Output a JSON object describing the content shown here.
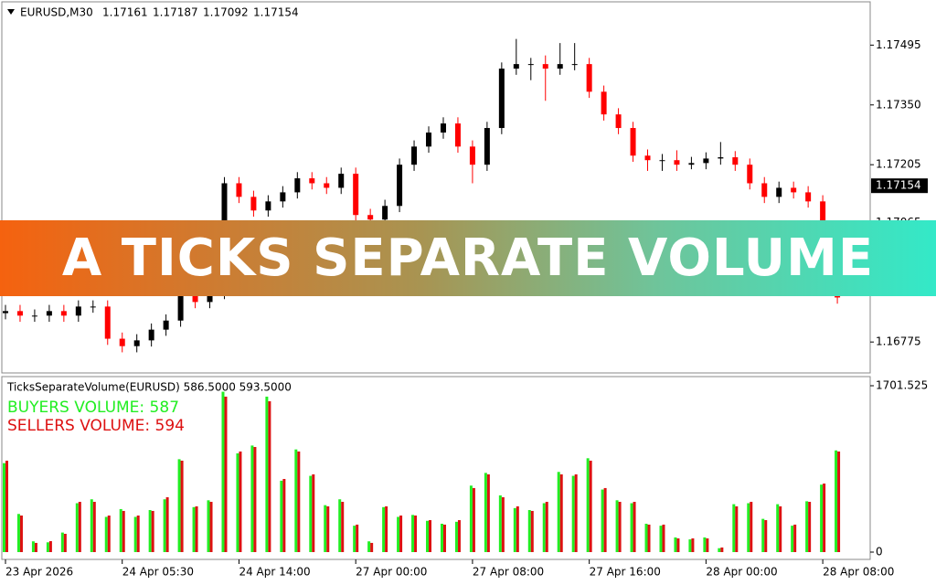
{
  "header": {
    "symbol": "EURUSD,M30",
    "ohlc": [
      1.17161,
      1.17187,
      1.17092,
      1.17154
    ]
  },
  "banner": "A TICKS SEPARATE VOLUME",
  "chart_data": [
    {
      "type": "candlestick",
      "up_color": "#000000",
      "down_color": "#ff0000",
      "ylim": [
        1.167,
        1.176
      ],
      "yticks": [
        1.17495,
        {
          "value": 1.1735,
          "label": "1.17350"
        },
        1.17205,
        1.17065,
        1.16775
      ],
      "current_price": 1.17154,
      "open": [
        1.16845,
        1.1685,
        1.16839,
        1.16839,
        1.1685,
        1.16839,
        1.16861,
        1.16861,
        1.16783,
        1.16765,
        1.16779,
        1.16805,
        1.16827,
        1.16916,
        1.16872,
        1.16894,
        1.1716,
        1.17127,
        1.17094,
        1.17116,
        1.17138,
        1.17172,
        1.1716,
        1.17149,
        1.17183,
        1.17083,
        1.17072,
        1.17105,
        1.17205,
        1.17249,
        1.17283,
        1.17305,
        1.17249,
        1.17205,
        1.17294,
        1.17438,
        1.17449,
        1.17449,
        1.17438,
        1.17449,
        1.17449,
        1.17382,
        1.17327,
        1.17294,
        1.17227,
        1.17216,
        1.17216,
        1.17205,
        1.17209,
        1.1722,
        1.17223,
        1.17205,
        1.1716,
        1.17127,
        1.17149,
        1.17138,
        1.17116,
        1.17027
      ],
      "high": [
        1.16865,
        1.16865,
        1.16854,
        1.16865,
        1.16865,
        1.16876,
        1.16876,
        1.16876,
        1.16798,
        1.16794,
        1.1682,
        1.16842,
        1.16931,
        1.16931,
        1.16909,
        1.17175,
        1.17175,
        1.17142,
        1.17131,
        1.17153,
        1.17187,
        1.17187,
        1.17175,
        1.17198,
        1.17198,
        1.17098,
        1.1712,
        1.1722,
        1.17264,
        1.17298,
        1.1732,
        1.1732,
        1.17264,
        1.17309,
        1.17453,
        1.1751,
        1.17464,
        1.1747,
        1.175,
        1.175,
        1.17464,
        1.17397,
        1.17342,
        1.17309,
        1.17242,
        1.17231,
        1.1724,
        1.17224,
        1.17235,
        1.1726,
        1.17238,
        1.1722,
        1.17175,
        1.17164,
        1.17164,
        1.17153,
        1.17131,
        1.17042
      ],
      "low": [
        1.1683,
        1.16824,
        1.16824,
        1.16824,
        1.16824,
        1.16824,
        1.16846,
        1.16768,
        1.1675,
        1.1675,
        1.16764,
        1.1679,
        1.16812,
        1.16857,
        1.16857,
        1.16879,
        1.17112,
        1.17079,
        1.17079,
        1.17101,
        1.17123,
        1.17145,
        1.17134,
        1.17134,
        1.17068,
        1.17057,
        1.17057,
        1.1709,
        1.1719,
        1.17234,
        1.17268,
        1.17234,
        1.1716,
        1.1719,
        1.17279,
        1.17423,
        1.1741,
        1.1736,
        1.17423,
        1.17434,
        1.17367,
        1.17312,
        1.17279,
        1.17212,
        1.1719,
        1.1719,
        1.1719,
        1.17194,
        1.17194,
        1.17205,
        1.1719,
        1.17145,
        1.17112,
        1.17112,
        1.17123,
        1.17101,
        1.17012,
        1.16868
      ],
      "close": [
        1.1685,
        1.16839,
        1.16839,
        1.1685,
        1.16839,
        1.16861,
        1.16861,
        1.16783,
        1.16765,
        1.16779,
        1.16805,
        1.16827,
        1.16916,
        1.16872,
        1.16894,
        1.1716,
        1.17127,
        1.17094,
        1.17116,
        1.17138,
        1.17172,
        1.1716,
        1.17149,
        1.17183,
        1.17083,
        1.17072,
        1.17105,
        1.17205,
        1.17249,
        1.17283,
        1.17305,
        1.17249,
        1.17205,
        1.17294,
        1.17438,
        1.17449,
        1.17449,
        1.17438,
        1.17449,
        1.17449,
        1.17382,
        1.17327,
        1.17294,
        1.17227,
        1.17216,
        1.17216,
        1.17205,
        1.17209,
        1.1722,
        1.17223,
        1.17205,
        1.1716,
        1.17127,
        1.17149,
        1.17138,
        1.17116,
        1.17027,
        1.16883
      ]
    },
    {
      "type": "bar",
      "title": "TicksSeparateVolume(EURUSD) 586.5000 593.5000",
      "annotations": [
        "BUYERS VOLUME: 587",
        "SELLERS VOLUME: 594"
      ],
      "ylim": [
        0,
        1701.525
      ],
      "yticks": [
        0,
        1701.525
      ],
      "xlim": [
        -0.25,
        59.25
      ],
      "xticks": [
        {
          "value": 0,
          "label": "23 Apr 2026"
        },
        {
          "value": 8,
          "label": "24 Apr 05:30"
        },
        {
          "value": 16,
          "label": "24 Apr 14:00"
        },
        {
          "value": 24,
          "label": "27 Apr 00:00"
        },
        {
          "value": 32,
          "label": "27 Apr 08:00"
        },
        {
          "value": 40,
          "label": "27 Apr 16:00"
        },
        {
          "value": 48,
          "label": "28 Apr 00:00"
        },
        {
          "value": 56,
          "label": "28 Apr 08:00"
        }
      ],
      "series": [
        {
          "color": "#22ee22",
          "values": [
            910,
            390,
            110,
            100,
            200,
            500,
            540,
            360,
            440,
            360,
            430,
            540,
            950,
            460,
            530,
            1640,
            1010,
            1090,
            1590,
            730,
            1050,
            780,
            480,
            540,
            270,
            110,
            460,
            360,
            380,
            320,
            290,
            310,
            680,
            810,
            580,
            450,
            430,
            500,
            820,
            780,
            960,
            640,
            530,
            500,
            290,
            270,
            150,
            130,
            150,
            40,
            490,
            500,
            340,
            490,
            270,
            520,
            690,
            1040
          ]
        },
        {
          "color": "#dd1111",
          "values": [
            935,
            374,
            94,
            112,
            187,
            514,
            514,
            374,
            421,
            374,
            421,
            561,
            935,
            468,
            514,
            1590,
            1029,
            1075,
            1543,
            748,
            1029,
            795,
            468,
            514,
            281,
            94,
            468,
            374,
            374,
            327,
            281,
            327,
            655,
            795,
            561,
            468,
            421,
            514,
            795,
            795,
            935,
            655,
            514,
            514,
            281,
            281,
            140,
            140,
            140,
            47,
            468,
            514,
            327,
            468,
            281,
            514,
            701,
            1029
          ]
        }
      ]
    }
  ]
}
